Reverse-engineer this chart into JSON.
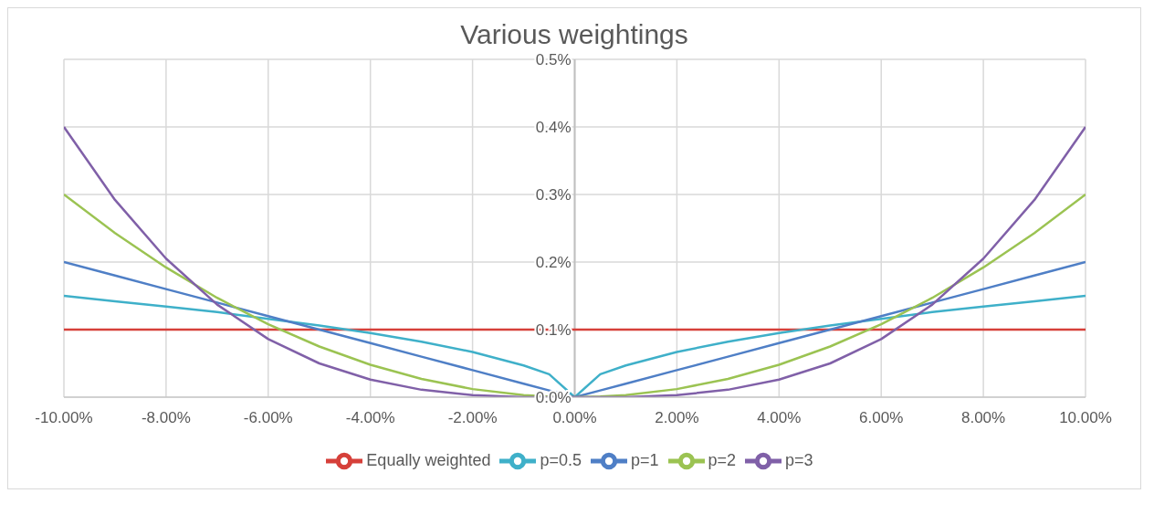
{
  "chart_data": {
    "type": "line",
    "title": "Various weightings",
    "x": [
      -10,
      -9,
      -8,
      -7,
      -6,
      -5,
      -4,
      -3,
      -2,
      -1,
      -0.5,
      0,
      0.5,
      1,
      2,
      3,
      4,
      5,
      6,
      7,
      8,
      9,
      10
    ],
    "series": [
      {
        "name": "Equally weighted",
        "color": "#d6403a",
        "values": [
          0.1,
          0.1,
          0.1,
          0.1,
          0.1,
          0.1,
          0.1,
          0.1,
          0.1,
          0.1,
          0.1,
          0.1,
          0.1,
          0.1,
          0.1,
          0.1,
          0.1,
          0.1,
          0.1,
          0.1,
          0.1,
          0.1,
          0.1
        ]
      },
      {
        "name": "p=0.5",
        "color": "#3fb0c9",
        "values": [
          0.15,
          0.142,
          0.134,
          0.126,
          0.116,
          0.106,
          0.095,
          0.082,
          0.067,
          0.047,
          0.034,
          0,
          0.034,
          0.047,
          0.067,
          0.082,
          0.095,
          0.106,
          0.116,
          0.126,
          0.134,
          0.142,
          0.15
        ]
      },
      {
        "name": "p=1",
        "color": "#4f7fc6",
        "values": [
          0.2,
          0.18,
          0.16,
          0.14,
          0.12,
          0.1,
          0.08,
          0.06,
          0.04,
          0.02,
          0.01,
          0,
          0.01,
          0.02,
          0.04,
          0.06,
          0.08,
          0.1,
          0.12,
          0.14,
          0.16,
          0.18,
          0.2
        ]
      },
      {
        "name": "p=2",
        "color": "#9bc352",
        "values": [
          0.3,
          0.243,
          0.192,
          0.147,
          0.108,
          0.075,
          0.048,
          0.027,
          0.012,
          0.003,
          0.001,
          0,
          0.001,
          0.003,
          0.012,
          0.027,
          0.048,
          0.075,
          0.108,
          0.147,
          0.192,
          0.243,
          0.3
        ]
      },
      {
        "name": "p=3",
        "color": "#8060a8",
        "values": [
          0.4,
          0.292,
          0.205,
          0.137,
          0.086,
          0.05,
          0.026,
          0.011,
          0.003,
          0,
          0,
          0,
          0,
          0,
          0.003,
          0.011,
          0.026,
          0.05,
          0.086,
          0.137,
          0.205,
          0.292,
          0.4
        ]
      }
    ],
    "xlim": [
      -10,
      10
    ],
    "xticks": [
      {
        "value": -10,
        "label": "-10.00%"
      },
      {
        "value": -8,
        "label": "-8.00%"
      },
      {
        "value": -6,
        "label": "-6.00%"
      },
      {
        "value": -4,
        "label": "-4.00%"
      },
      {
        "value": -2,
        "label": "-2.00%"
      },
      {
        "value": 0,
        "label": "0.00%"
      },
      {
        "value": 2,
        "label": "2.00%"
      },
      {
        "value": 4,
        "label": "4.00%"
      },
      {
        "value": 6,
        "label": "6.00%"
      },
      {
        "value": 8,
        "label": "8.00%"
      },
      {
        "value": 10,
        "label": "10.00%"
      }
    ],
    "ylim": [
      0,
      0.5
    ],
    "yticks": [
      {
        "value": 0,
        "label": "0.0%"
      },
      {
        "value": 0.1,
        "label": "0.1%"
      },
      {
        "value": 0.2,
        "label": "0.2%"
      },
      {
        "value": 0.3,
        "label": "0.3%"
      },
      {
        "value": 0.4,
        "label": "0.4%"
      },
      {
        "value": 0.5,
        "label": "0.5%"
      }
    ],
    "grid": true,
    "legend": "bottom",
    "marker": "none",
    "line_style": "solid"
  }
}
